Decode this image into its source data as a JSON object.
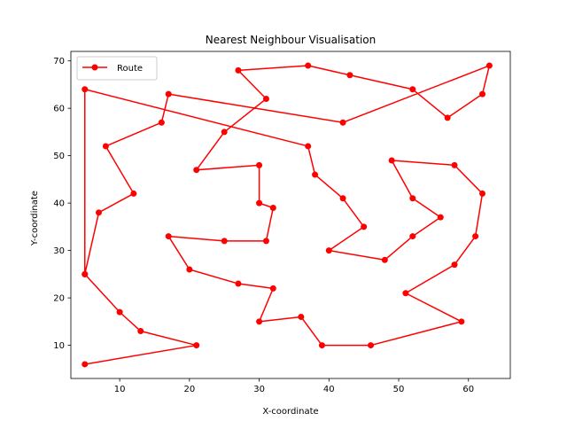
{
  "chart_data": {
    "type": "line",
    "title": "Nearest Neighbour Visualisation",
    "xlabel": "X-coordinate",
    "ylabel": "Y-coordinate",
    "xlim": [
      3.0,
      66.0
    ],
    "ylim": [
      3.0,
      72.0
    ],
    "xticks": [
      10,
      20,
      30,
      40,
      50,
      60
    ],
    "yticks": [
      10,
      20,
      30,
      40,
      50,
      60,
      70
    ],
    "grid": false,
    "legend": {
      "position": "upper-left"
    },
    "series": [
      {
        "name": "Route",
        "color": "#ff0000",
        "marker": "circle",
        "points": [
          [
            5,
            6
          ],
          [
            21,
            10
          ],
          [
            13,
            13
          ],
          [
            10,
            17
          ],
          [
            5,
            25
          ],
          [
            7,
            38
          ],
          [
            12,
            42
          ],
          [
            8,
            52
          ],
          [
            16,
            57
          ],
          [
            17,
            63
          ],
          [
            42,
            57
          ],
          [
            63,
            69
          ],
          [
            62,
            63
          ],
          [
            57,
            58
          ],
          [
            52,
            64
          ],
          [
            43,
            67
          ],
          [
            37,
            69
          ],
          [
            27,
            68
          ],
          [
            31,
            62
          ],
          [
            25,
            55
          ],
          [
            21,
            47
          ],
          [
            30,
            48
          ],
          [
            30,
            40
          ],
          [
            32,
            39
          ],
          [
            31,
            32
          ],
          [
            25,
            32
          ],
          [
            17,
            33
          ],
          [
            20,
            26
          ],
          [
            27,
            23
          ],
          [
            32,
            22
          ],
          [
            30,
            15
          ],
          [
            36,
            16
          ],
          [
            39,
            10
          ],
          [
            46,
            10
          ],
          [
            59,
            15
          ],
          [
            51,
            21
          ],
          [
            58,
            27
          ],
          [
            61,
            33
          ],
          [
            62,
            42
          ],
          [
            58,
            48
          ],
          [
            49,
            49
          ],
          [
            52,
            41
          ],
          [
            56,
            37
          ],
          [
            52,
            33
          ],
          [
            48,
            28
          ],
          [
            40,
            30
          ],
          [
            45,
            35
          ],
          [
            42,
            41
          ],
          [
            38,
            46
          ],
          [
            37,
            52
          ],
          [
            5,
            64
          ],
          [
            5,
            25
          ]
        ]
      }
    ]
  }
}
